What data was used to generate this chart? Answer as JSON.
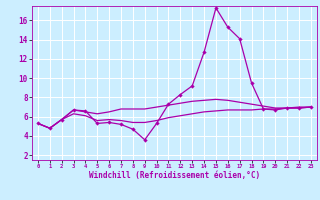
{
  "xlabel": "Windchill (Refroidissement éolien,°C)",
  "xlim": [
    -0.5,
    23.5
  ],
  "ylim": [
    1.5,
    17.5
  ],
  "yticks": [
    2,
    4,
    6,
    8,
    10,
    12,
    14,
    16
  ],
  "xticks": [
    0,
    1,
    2,
    3,
    4,
    5,
    6,
    7,
    8,
    9,
    10,
    11,
    12,
    13,
    14,
    15,
    16,
    17,
    18,
    19,
    20,
    21,
    22,
    23
  ],
  "bg_color": "#cceeff",
  "line_color": "#aa00aa",
  "grid_color": "#ffffff",
  "series1": [
    [
      0,
      5.3
    ],
    [
      1,
      4.8
    ],
    [
      2,
      5.7
    ],
    [
      3,
      6.7
    ],
    [
      4,
      6.6
    ],
    [
      5,
      5.3
    ],
    [
      6,
      5.4
    ],
    [
      7,
      5.2
    ],
    [
      8,
      4.7
    ],
    [
      9,
      3.6
    ],
    [
      10,
      5.3
    ],
    [
      11,
      7.3
    ],
    [
      12,
      8.3
    ],
    [
      13,
      9.2
    ],
    [
      14,
      12.7
    ],
    [
      15,
      17.3
    ],
    [
      16,
      15.3
    ],
    [
      17,
      14.1
    ],
    [
      18,
      9.5
    ],
    [
      19,
      6.8
    ],
    [
      20,
      6.7
    ],
    [
      21,
      6.9
    ],
    [
      22,
      6.9
    ],
    [
      23,
      7.0
    ]
  ],
  "series2": [
    [
      0,
      5.3
    ],
    [
      1,
      4.8
    ],
    [
      2,
      5.7
    ],
    [
      3,
      6.7
    ],
    [
      4,
      6.5
    ],
    [
      5,
      6.3
    ],
    [
      6,
      6.5
    ],
    [
      7,
      6.8
    ],
    [
      8,
      6.8
    ],
    [
      9,
      6.8
    ],
    [
      10,
      7.0
    ],
    [
      11,
      7.2
    ],
    [
      12,
      7.4
    ],
    [
      13,
      7.6
    ],
    [
      14,
      7.7
    ],
    [
      15,
      7.8
    ],
    [
      16,
      7.7
    ],
    [
      17,
      7.5
    ],
    [
      18,
      7.3
    ],
    [
      19,
      7.1
    ],
    [
      20,
      6.9
    ],
    [
      21,
      6.9
    ],
    [
      22,
      7.0
    ],
    [
      23,
      7.0
    ]
  ],
  "series3": [
    [
      0,
      5.3
    ],
    [
      1,
      4.8
    ],
    [
      2,
      5.7
    ],
    [
      3,
      6.3
    ],
    [
      4,
      6.1
    ],
    [
      5,
      5.6
    ],
    [
      6,
      5.7
    ],
    [
      7,
      5.6
    ],
    [
      8,
      5.4
    ],
    [
      9,
      5.4
    ],
    [
      10,
      5.6
    ],
    [
      11,
      5.9
    ],
    [
      12,
      6.1
    ],
    [
      13,
      6.3
    ],
    [
      14,
      6.5
    ],
    [
      15,
      6.6
    ],
    [
      16,
      6.7
    ],
    [
      17,
      6.7
    ],
    [
      18,
      6.7
    ],
    [
      19,
      6.8
    ],
    [
      20,
      6.8
    ],
    [
      21,
      6.9
    ],
    [
      22,
      6.9
    ],
    [
      23,
      7.0
    ]
  ]
}
